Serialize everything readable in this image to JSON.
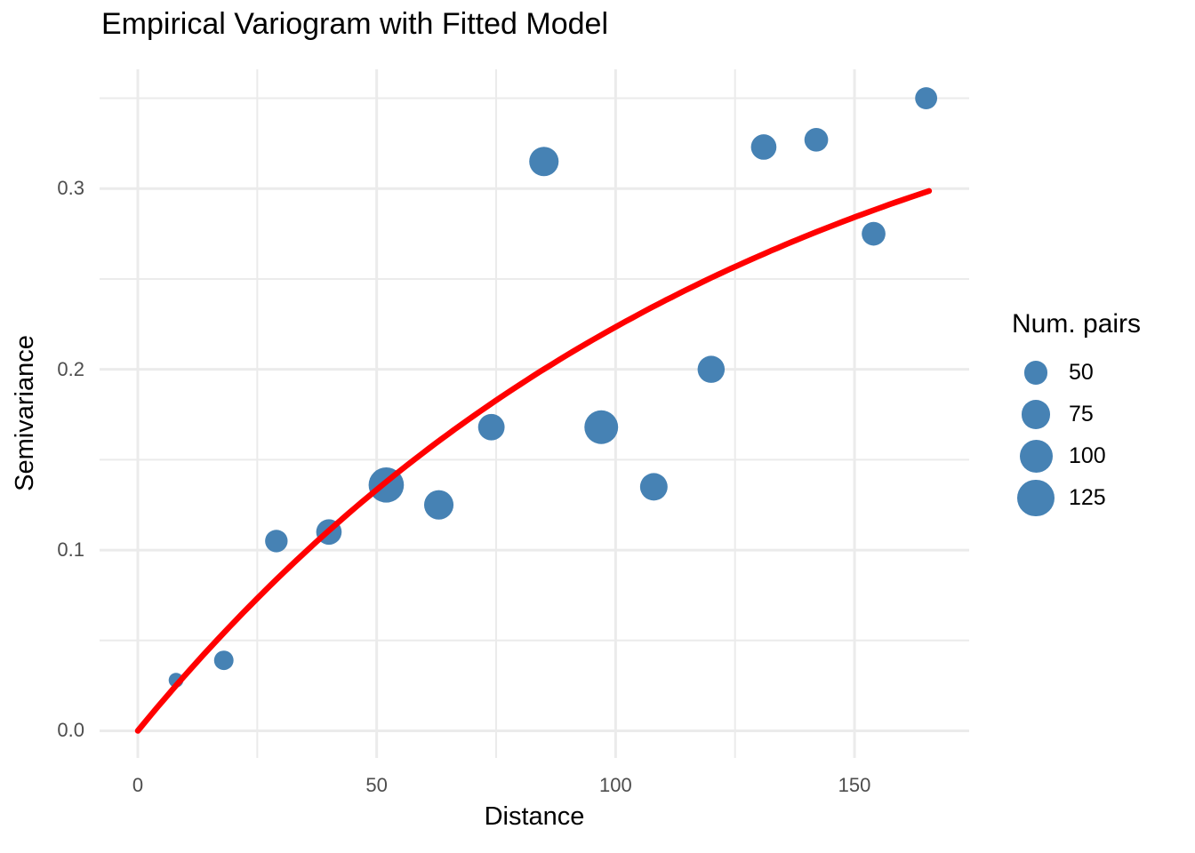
{
  "chart_data": {
    "type": "scatter",
    "title": "Empirical Variogram with Fitted Model",
    "xlabel": "Distance",
    "ylabel": "Semivariance",
    "xlim": [
      -8,
      174
    ],
    "ylim": [
      -0.015,
      0.366
    ],
    "grid": "major+minor",
    "x_ticks": {
      "major": [
        0,
        50,
        100,
        150
      ],
      "minor": [
        25,
        75,
        125
      ],
      "labels": [
        "0",
        "50",
        "100",
        "150"
      ]
    },
    "y_ticks": {
      "major": [
        0,
        0.1,
        0.2,
        0.3
      ],
      "minor": [
        0.05,
        0.15,
        0.25,
        0.35
      ],
      "labels": [
        "0.0",
        "0.1",
        "0.2",
        "0.3"
      ]
    },
    "points": [
      {
        "distance": 8,
        "semivariance": 0.028,
        "num_pairs": 20
      },
      {
        "distance": 18,
        "semivariance": 0.039,
        "num_pairs": 35
      },
      {
        "distance": 29,
        "semivariance": 0.105,
        "num_pairs": 47
      },
      {
        "distance": 40,
        "semivariance": 0.11,
        "num_pairs": 60
      },
      {
        "distance": 52,
        "semivariance": 0.136,
        "num_pairs": 115
      },
      {
        "distance": 63,
        "semivariance": 0.125,
        "num_pairs": 80
      },
      {
        "distance": 74,
        "semivariance": 0.168,
        "num_pairs": 65
      },
      {
        "distance": 85,
        "semivariance": 0.315,
        "num_pairs": 80
      },
      {
        "distance": 97,
        "semivariance": 0.168,
        "num_pairs": 105
      },
      {
        "distance": 108,
        "semivariance": 0.135,
        "num_pairs": 70
      },
      {
        "distance": 120,
        "semivariance": 0.2,
        "num_pairs": 68
      },
      {
        "distance": 131,
        "semivariance": 0.323,
        "num_pairs": 60
      },
      {
        "distance": 142,
        "semivariance": 0.327,
        "num_pairs": 52
      },
      {
        "distance": 154,
        "semivariance": 0.275,
        "num_pairs": 52
      },
      {
        "distance": 165,
        "semivariance": 0.35,
        "num_pairs": 45
      }
    ],
    "fitted_model": {
      "type": "exponential",
      "sill": 0.41,
      "range": 127,
      "h_min": 0,
      "h_max": 165.6
    },
    "legend": {
      "title": "Num. pairs",
      "position": "right",
      "values": [
        50,
        75,
        100,
        125
      ]
    },
    "colors": {
      "point": "#4682B4",
      "line": "#FF0000",
      "grid": "#EBEBEB",
      "tick_label": "#4D4D4D",
      "text": "#000000",
      "background": "#FFFFFF"
    },
    "point_radius_scale": 1.85
  }
}
